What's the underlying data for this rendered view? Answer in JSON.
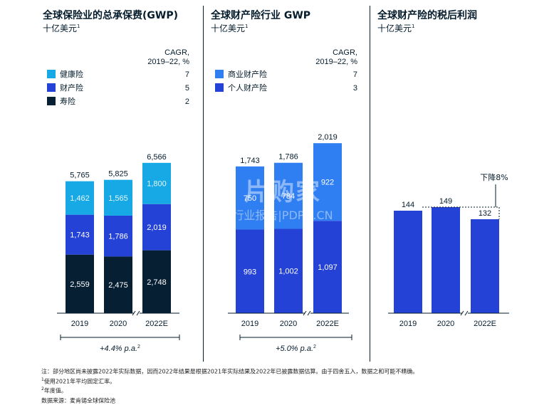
{
  "panels": [
    {
      "title": "全球保险业的总承保费(GWP)",
      "subtitle": "十亿美元",
      "subtitle_note": "1",
      "cagr_header": [
        "CAGR,",
        "2019–22, %"
      ],
      "legend": [
        {
          "label": "健康险",
          "cagr": "7",
          "color": "#17a9e5"
        },
        {
          "label": "财产险",
          "cagr": "5",
          "color": "#2542d6"
        },
        {
          "label": "寿险",
          "cagr": "2",
          "color": "#061f33"
        }
      ],
      "growth_label": "+4.4% p.a.",
      "growth_note": "2"
    },
    {
      "title": "全球财产险行业 GWP",
      "subtitle": "十亿美元",
      "subtitle_note": "1",
      "cagr_header": [
        "CAGR,",
        "2019–22, %"
      ],
      "legend": [
        {
          "label": "商业财产险",
          "cagr": "7",
          "color": "#2f7ef2"
        },
        {
          "label": "个人财产险",
          "cagr": "3",
          "color": "#2542d6"
        }
      ],
      "growth_label": "+5.0% p.a.",
      "growth_note": "2"
    },
    {
      "title": "全球财产险的税后利润",
      "subtitle": "十亿美元",
      "subtitle_note": "1",
      "annotation": "下降8%"
    }
  ],
  "chart_data": [
    {
      "type": "bar",
      "stacked": true,
      "title": "全球保险业的总承保费(GWP)",
      "categories": [
        "2019",
        "2020",
        "2022E"
      ],
      "series": [
        {
          "name": "寿险",
          "color": "#061f33",
          "values": [
            2559,
            2475,
            2748
          ],
          "labels": [
            "2,559",
            "2,475",
            "2,748"
          ]
        },
        {
          "name": "财产险",
          "color": "#2542d6",
          "values": [
            1743,
            1786,
            2019
          ],
          "labels": [
            "1,743",
            "1,786",
            "2,019"
          ]
        },
        {
          "name": "健康险",
          "color": "#17a9e5",
          "values": [
            1462,
            1565,
            1800
          ],
          "labels": [
            "1,462",
            "1,565",
            "1,800"
          ]
        }
      ],
      "totals": [
        5765,
        5825,
        6566
      ],
      "total_labels": [
        "5,765",
        "5,825",
        "6,566"
      ],
      "axis_break_before_last": true
    },
    {
      "type": "bar",
      "stacked": true,
      "title": "全球财产险行业 GWP",
      "categories": [
        "2019",
        "2020",
        "2022E"
      ],
      "series": [
        {
          "name": "个人财产险",
          "color": "#2542d6",
          "values": [
            993,
            1002,
            1097
          ],
          "labels": [
            "993",
            "1,002",
            "1,097"
          ]
        },
        {
          "name": "商业财产险",
          "color": "#2f7ef2",
          "values": [
            750,
            784,
            922
          ],
          "labels": [
            "750",
            "784",
            "922"
          ]
        }
      ],
      "totals": [
        1743,
        1786,
        2019
      ],
      "total_labels": [
        "1,743",
        "1,786",
        "2,019"
      ],
      "axis_break_before_last": true
    },
    {
      "type": "bar",
      "title": "全球财产险的税后利润",
      "categories": [
        "2019",
        "2020",
        "2022E"
      ],
      "series": [
        {
          "name": "",
          "color": "#2542d6",
          "values": [
            144,
            149,
            132
          ],
          "labels": [
            "144",
            "149",
            "132"
          ]
        }
      ],
      "axis_break_before_last": true
    }
  ],
  "footnotes": [
    {
      "sup": "",
      "text": "注：部分地区尚未披露2022年实际数据，因而2022年结果是根据2021年实际结果及2022年已披露数据估算。由于四舍五入，数据之和可能不精确。"
    },
    {
      "sup": "1",
      "text": "使用2021年平均固定汇率。"
    },
    {
      "sup": "2",
      "text": "年度值。"
    },
    {
      "sup": "",
      "text": "数据来源：麦肯锡全球保险池"
    }
  ],
  "watermark": {
    "main": "片购家",
    "sub": "行业报告|PDPO.CN"
  }
}
